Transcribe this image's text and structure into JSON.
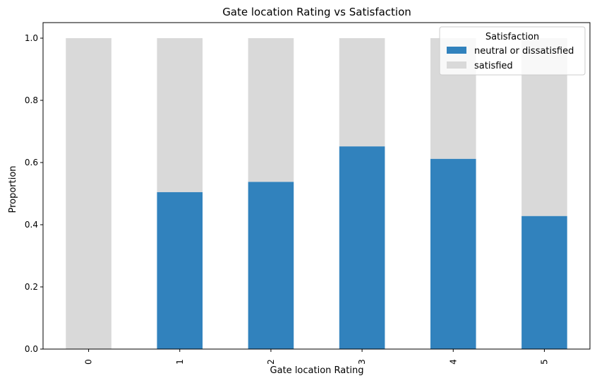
{
  "chart_data": {
    "type": "bar",
    "stacked": true,
    "title": "Gate location Rating vs Satisfaction",
    "xlabel": "Gate location Rating",
    "ylabel": "Proportion",
    "categories": [
      "0",
      "1",
      "2",
      "3",
      "4",
      "5"
    ],
    "series": [
      {
        "name": "neutral or dissatisfied",
        "color": "#3182bd",
        "values": [
          0.0,
          0.505,
          0.538,
          0.652,
          0.612,
          0.428
        ]
      },
      {
        "name": "satisfied",
        "color": "#d9d9d9",
        "values": [
          1.0,
          0.495,
          0.462,
          0.348,
          0.388,
          0.572
        ]
      }
    ],
    "ylim": [
      0,
      1.05
    ],
    "yticks": [
      "0.0",
      "0.2",
      "0.4",
      "0.6",
      "0.8",
      "1.0"
    ],
    "ytick_values": [
      0,
      0.2,
      0.4,
      0.6,
      0.8,
      1.0
    ],
    "legend": {
      "title": "Satisfaction",
      "placement": "top-right"
    },
    "grid": false
  }
}
